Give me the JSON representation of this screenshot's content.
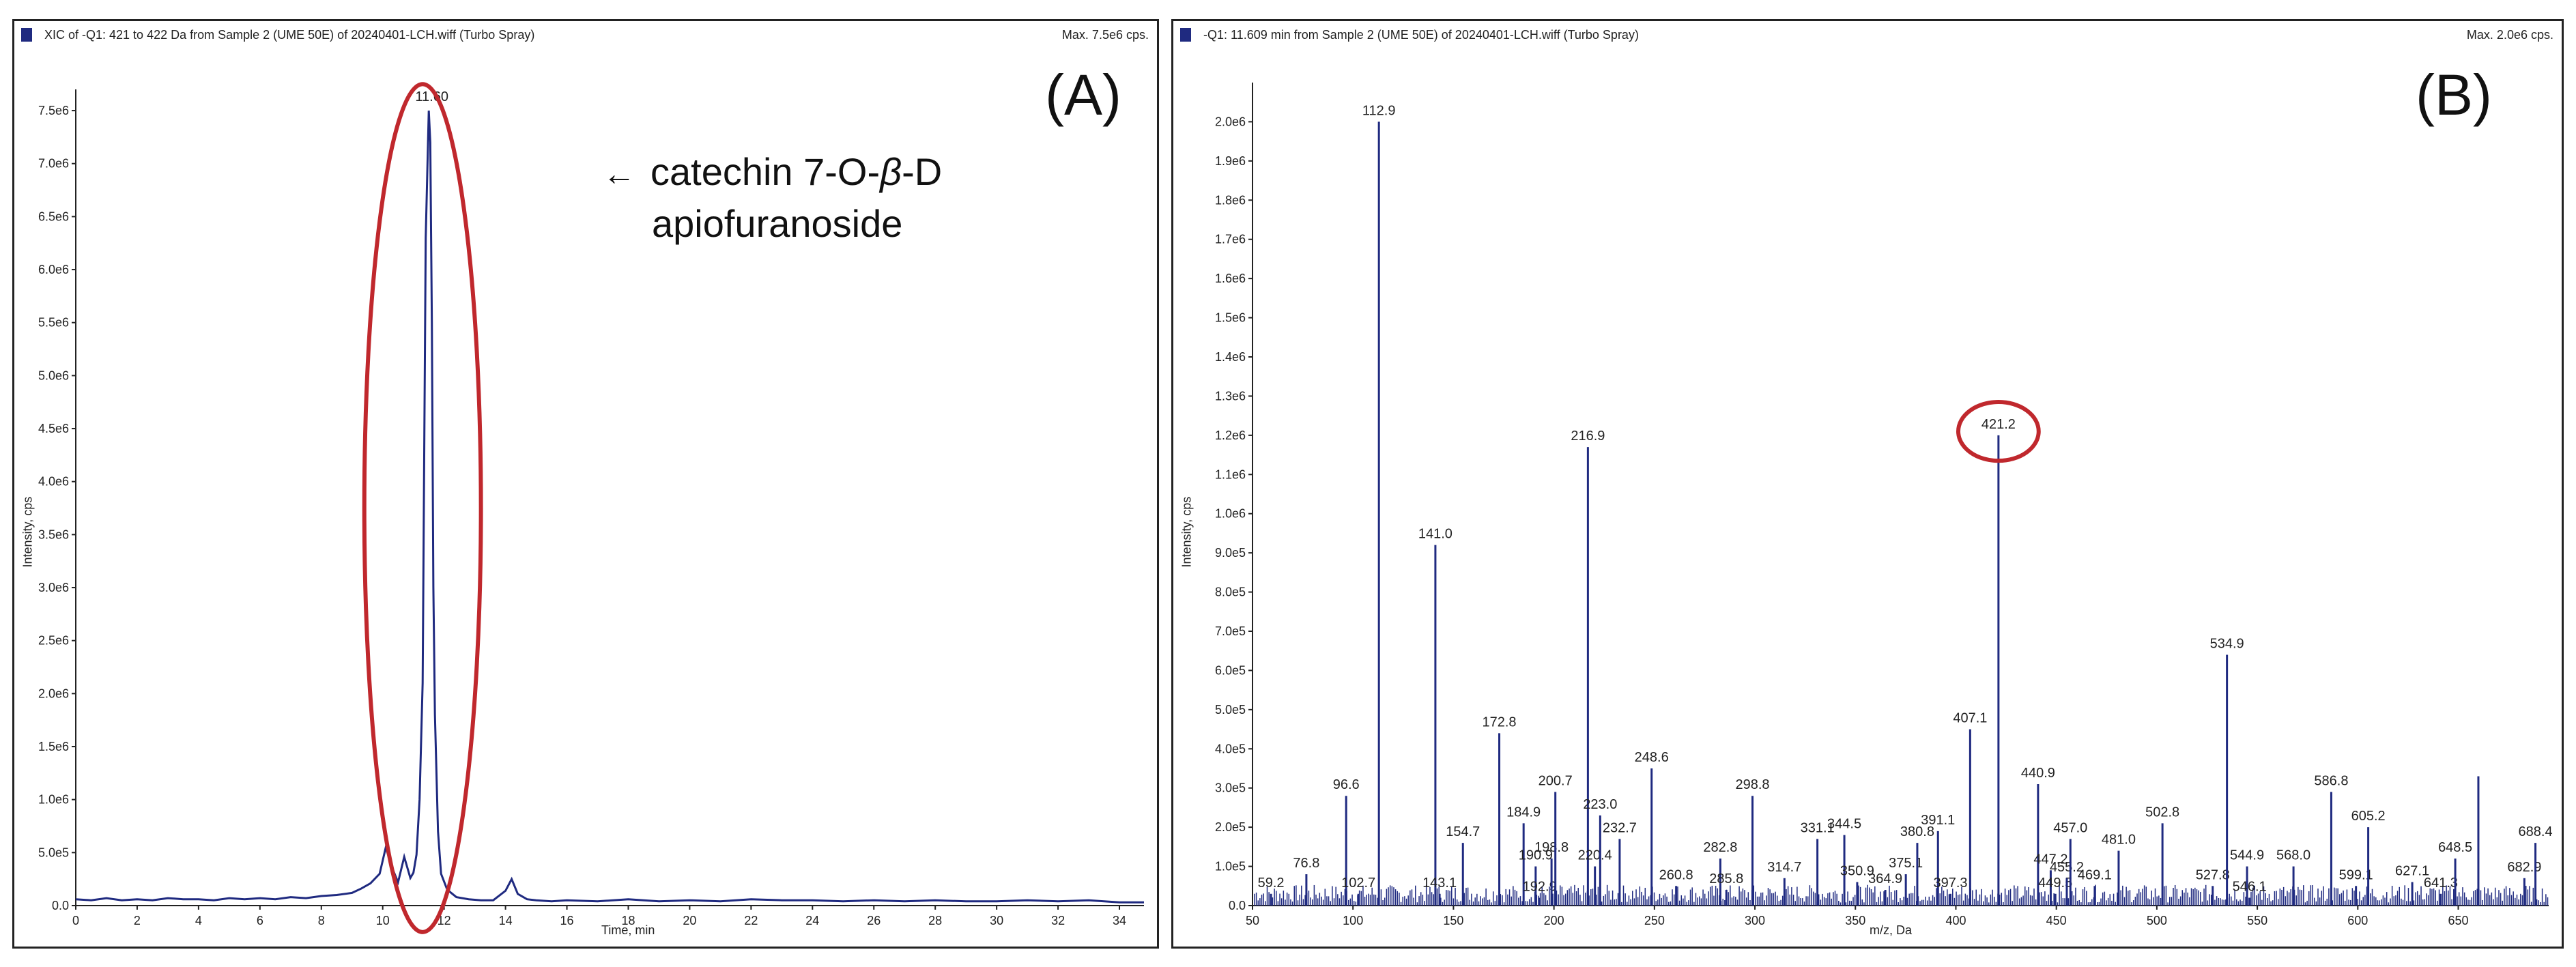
{
  "panels": [
    {
      "header_title": "XIC of -Q1: 421 to 422 Da from Sample 2 (UME 50E) of 20240401-LCH.wiff (Turbo Spray)",
      "header_max": "Max. 7.5e6 cps.",
      "panel_label": "(A)",
      "annotation_line1_prefix": "catechin 7-O-",
      "annotation_beta": "β",
      "annotation_line1_suffix": "-D",
      "annotation_line2": "apiofuranoside",
      "annotation_arrow": "←"
    },
    {
      "header_title": "-Q1: 11.609 min from Sample 2 (UME 50E) of 20240401-LCH.wiff (Turbo Spray)",
      "header_max": "Max. 2.0e6 cps.",
      "panel_label": "(B)"
    }
  ],
  "colors": {
    "trace": "#1f2a80",
    "highlight": "#c0282d",
    "axis": "#222222"
  },
  "chart_data": [
    {
      "type": "line",
      "xlabel": "Time, min",
      "ylabel": "Intensity, cps",
      "xlim": [
        0,
        34.8
      ],
      "ylim": [
        0,
        7700000.0
      ],
      "x_ticks": [
        0,
        2,
        4,
        6,
        8,
        10,
        12,
        14,
        16,
        18,
        20,
        22,
        24,
        26,
        28,
        30,
        32,
        34
      ],
      "y_ticks": [
        0,
        500000.0,
        1000000.0,
        1500000.0,
        2000000.0,
        2500000.0,
        3000000.0,
        3500000.0,
        4000000.0,
        4500000.0,
        5000000.0,
        5500000.0,
        6000000.0,
        6500000.0,
        7000000.0,
        7500000.0
      ],
      "y_tick_labels": [
        "0.0",
        "5.0e5",
        "1.0e6",
        "1.5e6",
        "2.0e6",
        "2.5e6",
        "3.0e6",
        "3.5e6",
        "4.0e6",
        "4.5e6",
        "5.0e6",
        "5.5e6",
        "6.0e6",
        "6.5e6",
        "7.0e6",
        "7.5e6"
      ],
      "peak_labels": [
        {
          "x": 11.6,
          "y": 7500000.0,
          "label": "11.60"
        }
      ],
      "highlight": {
        "shape": "ellipse",
        "x_center": 11.3,
        "y_center": 3750000.0,
        "x_radius": 1.9,
        "y_radius": 4000000.0
      },
      "series": [
        {
          "x": [
            0,
            0.5,
            1,
            1.5,
            2,
            2.5,
            3,
            3.5,
            4,
            4.5,
            5,
            5.5,
            6,
            6.5,
            7,
            7.5,
            8,
            8.5,
            9,
            9.3,
            9.6,
            9.9,
            10.1,
            10.3,
            10.5,
            10.7,
            10.9,
            11.0,
            11.1,
            11.2,
            11.3,
            11.4,
            11.5,
            11.55,
            11.6,
            11.65,
            11.7,
            11.8,
            11.9,
            12.1,
            12.4,
            12.8,
            13.2,
            13.6,
            14.0,
            14.2,
            14.4,
            14.7,
            15,
            15.5,
            16,
            17,
            18,
            19,
            20,
            21,
            22,
            23,
            24,
            25,
            26,
            27,
            28,
            29,
            30,
            31,
            32,
            33,
            34,
            34.8
          ],
          "y": [
            60000.0,
            50000.0,
            70000.0,
            50000.0,
            60000.0,
            50000.0,
            70000.0,
            60000.0,
            60000.0,
            50000.0,
            70000.0,
            60000.0,
            70000.0,
            60000.0,
            80000.0,
            70000.0,
            90000.0,
            100000.0,
            120000.0,
            160000.0,
            210000.0,
            300000.0,
            550000.0,
            360000.0,
            220000.0,
            460000.0,
            260000.0,
            310000.0,
            480000.0,
            1000000.0,
            2100000.0,
            6300000.0,
            7500000.0,
            7200000.0,
            5500000.0,
            3000000.0,
            1800000.0,
            700000.0,
            300000.0,
            150000.0,
            80000.0,
            60000.0,
            50000.0,
            50000.0,
            140000.0,
            250000.0,
            110000.0,
            60000.0,
            50000.0,
            40000.0,
            50000.0,
            40000.0,
            60000.0,
            40000.0,
            50000.0,
            40000.0,
            60000.0,
            50000.0,
            50000.0,
            40000.0,
            50000.0,
            40000.0,
            50000.0,
            40000.0,
            40000.0,
            50000.0,
            40000.0,
            50000.0,
            30000.0,
            30000.0
          ]
        }
      ]
    },
    {
      "type": "bar",
      "xlabel": "m/z, Da",
      "ylabel": "Intensity, cps",
      "xlim": [
        50,
        695
      ],
      "ylim": [
        0,
        2100000.0
      ],
      "x_ticks": [
        50,
        100,
        150,
        200,
        250,
        300,
        350,
        400,
        450,
        500,
        550,
        600,
        650
      ],
      "y_ticks": [
        0,
        100000.0,
        200000.0,
        300000.0,
        400000.0,
        500000.0,
        600000.0,
        700000.0,
        800000.0,
        900000.0,
        1000000.0,
        1100000.0,
        1200000.0,
        1300000.0,
        1400000.0,
        1500000.0,
        1600000.0,
        1700000.0,
        1800000.0,
        1900000.0,
        2000000.0
      ],
      "y_tick_labels": [
        "0.0",
        "1.0e5",
        "2.0e5",
        "3.0e5",
        "4.0e5",
        "5.0e5",
        "6.0e5",
        "7.0e5",
        "8.0e5",
        "9.0e5",
        "1.0e6",
        "1.1e6",
        "1.2e6",
        "1.3e6",
        "1.4e6",
        "1.5e6",
        "1.6e6",
        "1.7e6",
        "1.8e6",
        "1.9e6",
        "2.0e6"
      ],
      "highlight": {
        "shape": "ellipse",
        "x_center": 421.2,
        "y_center": 1210000.0,
        "x_radius": 20,
        "y_radius": 75000.0
      },
      "peaks": [
        {
          "mz": 59.2,
          "y": 30000.0,
          "label": "59.2"
        },
        {
          "mz": 76.8,
          "y": 80000.0,
          "label": "76.8"
        },
        {
          "mz": 96.6,
          "y": 280000.0,
          "label": "96.6"
        },
        {
          "mz": 102.7,
          "y": 30000.0,
          "label": "102.7"
        },
        {
          "mz": 112.9,
          "y": 2000000.0,
          "label": "112.9"
        },
        {
          "mz": 141.0,
          "y": 920000.0,
          "label": "141.0"
        },
        {
          "mz": 143.1,
          "y": 30000.0,
          "label": "143.1"
        },
        {
          "mz": 154.7,
          "y": 160000.0,
          "label": "154.7"
        },
        {
          "mz": 172.8,
          "y": 440000.0,
          "label": "172.8"
        },
        {
          "mz": 184.9,
          "y": 210000.0,
          "label": "184.9"
        },
        {
          "mz": 190.9,
          "y": 100000.0,
          "label": "190.9"
        },
        {
          "mz": 192.9,
          "y": 20000.0,
          "label": "192.9"
        },
        {
          "mz": 198.8,
          "y": 120000.0,
          "label": "198.8"
        },
        {
          "mz": 200.7,
          "y": 290000.0,
          "label": "200.7"
        },
        {
          "mz": 216.9,
          "y": 1170000.0,
          "label": "216.9"
        },
        {
          "mz": 220.4,
          "y": 100000.0,
          "label": "220.4"
        },
        {
          "mz": 223.0,
          "y": 230000.0,
          "label": "223.0"
        },
        {
          "mz": 232.7,
          "y": 170000.0,
          "label": "232.7"
        },
        {
          "mz": 248.6,
          "y": 350000.0,
          "label": "248.6"
        },
        {
          "mz": 260.8,
          "y": 50000.0,
          "label": "260.8"
        },
        {
          "mz": 282.8,
          "y": 120000.0,
          "label": "282.8"
        },
        {
          "mz": 285.8,
          "y": 40000.0,
          "label": "285.8"
        },
        {
          "mz": 298.8,
          "y": 280000.0,
          "label": "298.8"
        },
        {
          "mz": 314.7,
          "y": 70000.0,
          "label": "314.7"
        },
        {
          "mz": 331.1,
          "y": 170000.0,
          "label": "331.1"
        },
        {
          "mz": 344.5,
          "y": 180000.0,
          "label": "344.5"
        },
        {
          "mz": 350.9,
          "y": 60000.0,
          "label": "350.9"
        },
        {
          "mz": 364.9,
          "y": 40000.0,
          "label": "364.9"
        },
        {
          "mz": 375.1,
          "y": 80000.0,
          "label": "375.1"
        },
        {
          "mz": 380.8,
          "y": 160000.0,
          "label": "380.8"
        },
        {
          "mz": 391.1,
          "y": 190000.0,
          "label": "391.1"
        },
        {
          "mz": 397.3,
          "y": 30000.0,
          "label": "397.3"
        },
        {
          "mz": 407.1,
          "y": 450000.0,
          "label": "407.1"
        },
        {
          "mz": 421.2,
          "y": 1200000.0,
          "label": "421.2"
        },
        {
          "mz": 440.9,
          "y": 310000.0,
          "label": "440.9"
        },
        {
          "mz": 447.2,
          "y": 90000.0,
          "label": "447.2"
        },
        {
          "mz": 449.5,
          "y": 30000.0,
          "label": "449.5"
        },
        {
          "mz": 455.2,
          "y": 70000.0,
          "label": "455.2"
        },
        {
          "mz": 457.0,
          "y": 170000.0,
          "label": "457.0"
        },
        {
          "mz": 469.1,
          "y": 50000.0,
          "label": "469.1"
        },
        {
          "mz": 481.0,
          "y": 140000.0,
          "label": "481.0"
        },
        {
          "mz": 502.8,
          "y": 210000.0,
          "label": "502.8"
        },
        {
          "mz": 527.8,
          "y": 50000.0,
          "label": "527.8"
        },
        {
          "mz": 534.9,
          "y": 640000.0,
          "label": "534.9"
        },
        {
          "mz": 544.9,
          "y": 100000.0,
          "label": "544.9"
        },
        {
          "mz": 546.1,
          "y": 20000.0,
          "label": "546.1"
        },
        {
          "mz": 568.0,
          "y": 100000.0,
          "label": "568.0"
        },
        {
          "mz": 586.8,
          "y": 290000.0,
          "label": "586.8"
        },
        {
          "mz": 599.1,
          "y": 50000.0,
          "label": "599.1"
        },
        {
          "mz": 605.2,
          "y": 200000.0,
          "label": "605.2"
        },
        {
          "mz": 627.1,
          "y": 60000.0,
          "label": "627.1"
        },
        {
          "mz": 641.3,
          "y": 30000.0,
          "label": "641.3"
        },
        {
          "mz": 648.5,
          "y": 120000.0,
          "label": "648.5"
        },
        {
          "mz": 660.0,
          "y": 330000.0,
          "label": ""
        },
        {
          "mz": 682.9,
          "y": 70000.0,
          "label": "682.9"
        },
        {
          "mz": 688.4,
          "y": 160000.0,
          "label": "688.4"
        }
      ]
    }
  ]
}
